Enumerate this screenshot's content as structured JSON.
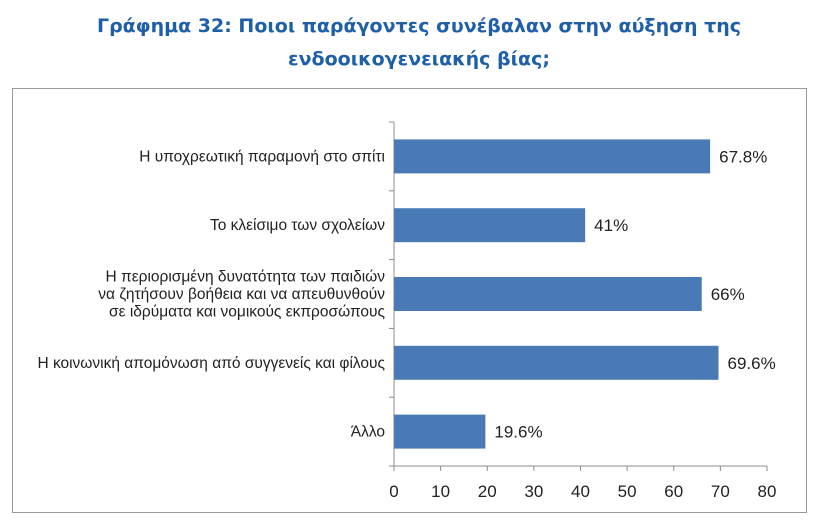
{
  "title_lines": [
    "Γράφημα 32: Ποιοι παράγοντες συνέβαλαν στην αύξηση της",
    "ενδοοικογενειακής βίας;"
  ],
  "chart_data": {
    "type": "bar",
    "orientation": "horizontal",
    "title": "Γράφημα 32: Ποιοι παράγοντες συνέβαλαν στην αύξηση της ενδοοικογενειακής βίας;",
    "categories": [
      [
        "Η υποχρεωτική παραμονή στο σπίτι"
      ],
      [
        "Το κλείσιμο των σχολείων"
      ],
      [
        "Η περιορισμένη δυνατότητα των παιδιών",
        "να ζητήσουν βοήθεια και να απευθυνθούν",
        "σε ιδρύματα και νομικούς εκπροσώπους"
      ],
      [
        "Η κοινωνική απομόνωση από συγγενείς και φίλους"
      ],
      [
        "Άλλο"
      ]
    ],
    "values": [
      67.8,
      41,
      66,
      69.6,
      19.6
    ],
    "value_labels": [
      "67.8%",
      "41%",
      "66%",
      "69.6%",
      "19.6%"
    ],
    "xlim": [
      0,
      80
    ],
    "xticks": [
      0,
      10,
      20,
      30,
      40,
      50,
      60,
      70,
      80
    ],
    "bar_color": "#4a7ab5",
    "grid": false
  }
}
